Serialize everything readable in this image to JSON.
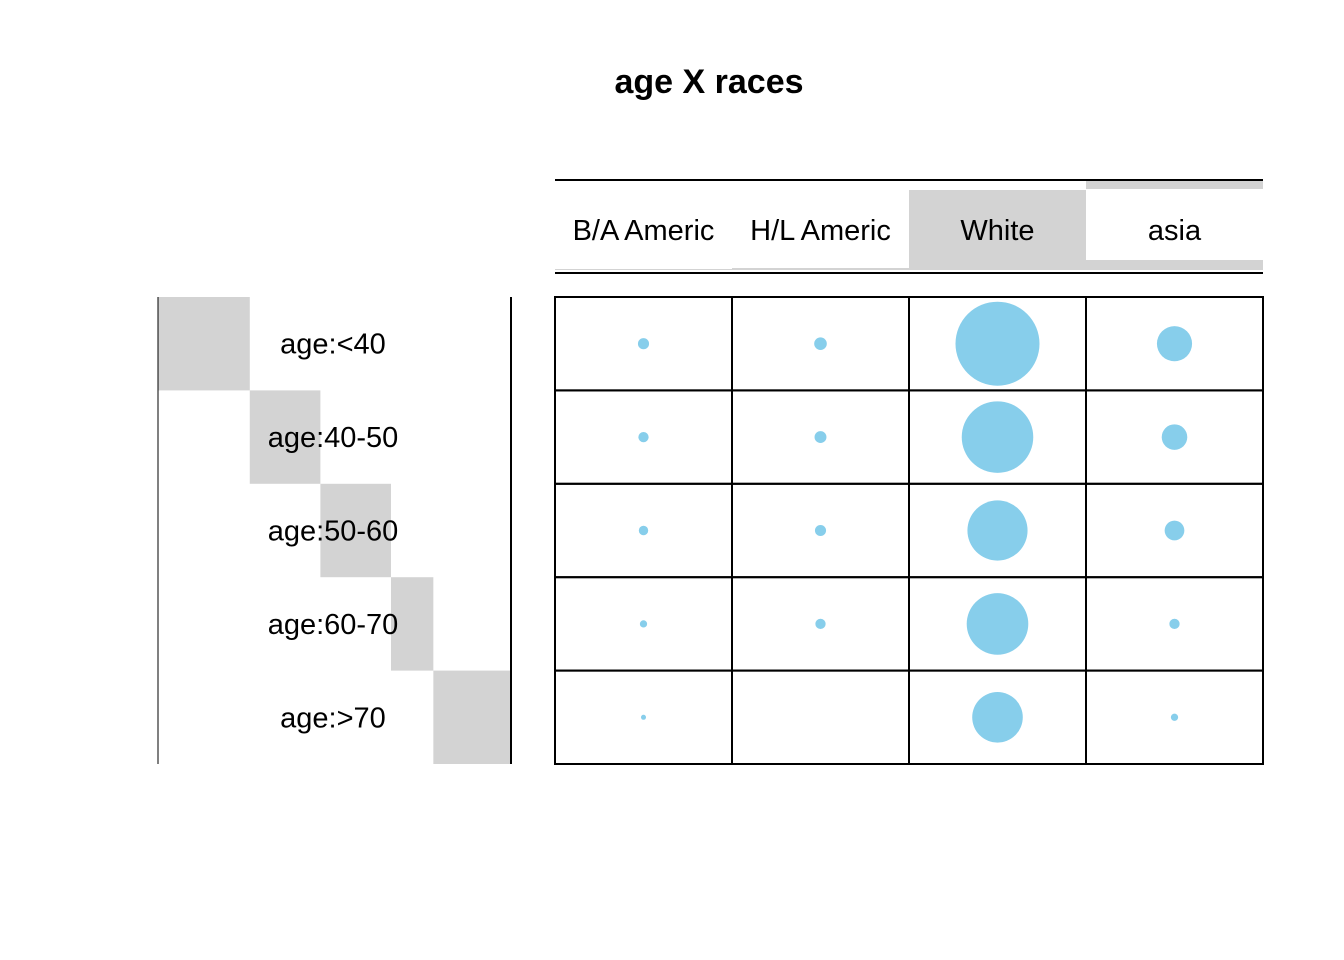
{
  "chart_data": {
    "type": "bubble-matrix",
    "title": "age X races",
    "rows": [
      "age:<40",
      "age:40-50",
      "age:50-60",
      "age:60-70",
      "age:>70"
    ],
    "columns": [
      "B/A Americ",
      "H/L Americ",
      "White",
      "asia"
    ],
    "row_marginals": [
      0.26,
      0.2,
      0.2,
      0.12,
      0.08
    ],
    "column_marginals": [
      0.01,
      0.02,
      0.8,
      0.1
    ],
    "values": [
      [
        0.7,
        0.9,
        40,
        7
      ],
      [
        0.6,
        0.8,
        29,
        3.7
      ],
      [
        0.5,
        0.7,
        20.5,
        2.2
      ],
      [
        0.3,
        0.6,
        21.5,
        0.6
      ],
      [
        0.1,
        0,
        14.5,
        0.3
      ]
    ],
    "bubble_color": "#87CEEB",
    "bar_color": "#D3D3D3",
    "grid": true
  }
}
